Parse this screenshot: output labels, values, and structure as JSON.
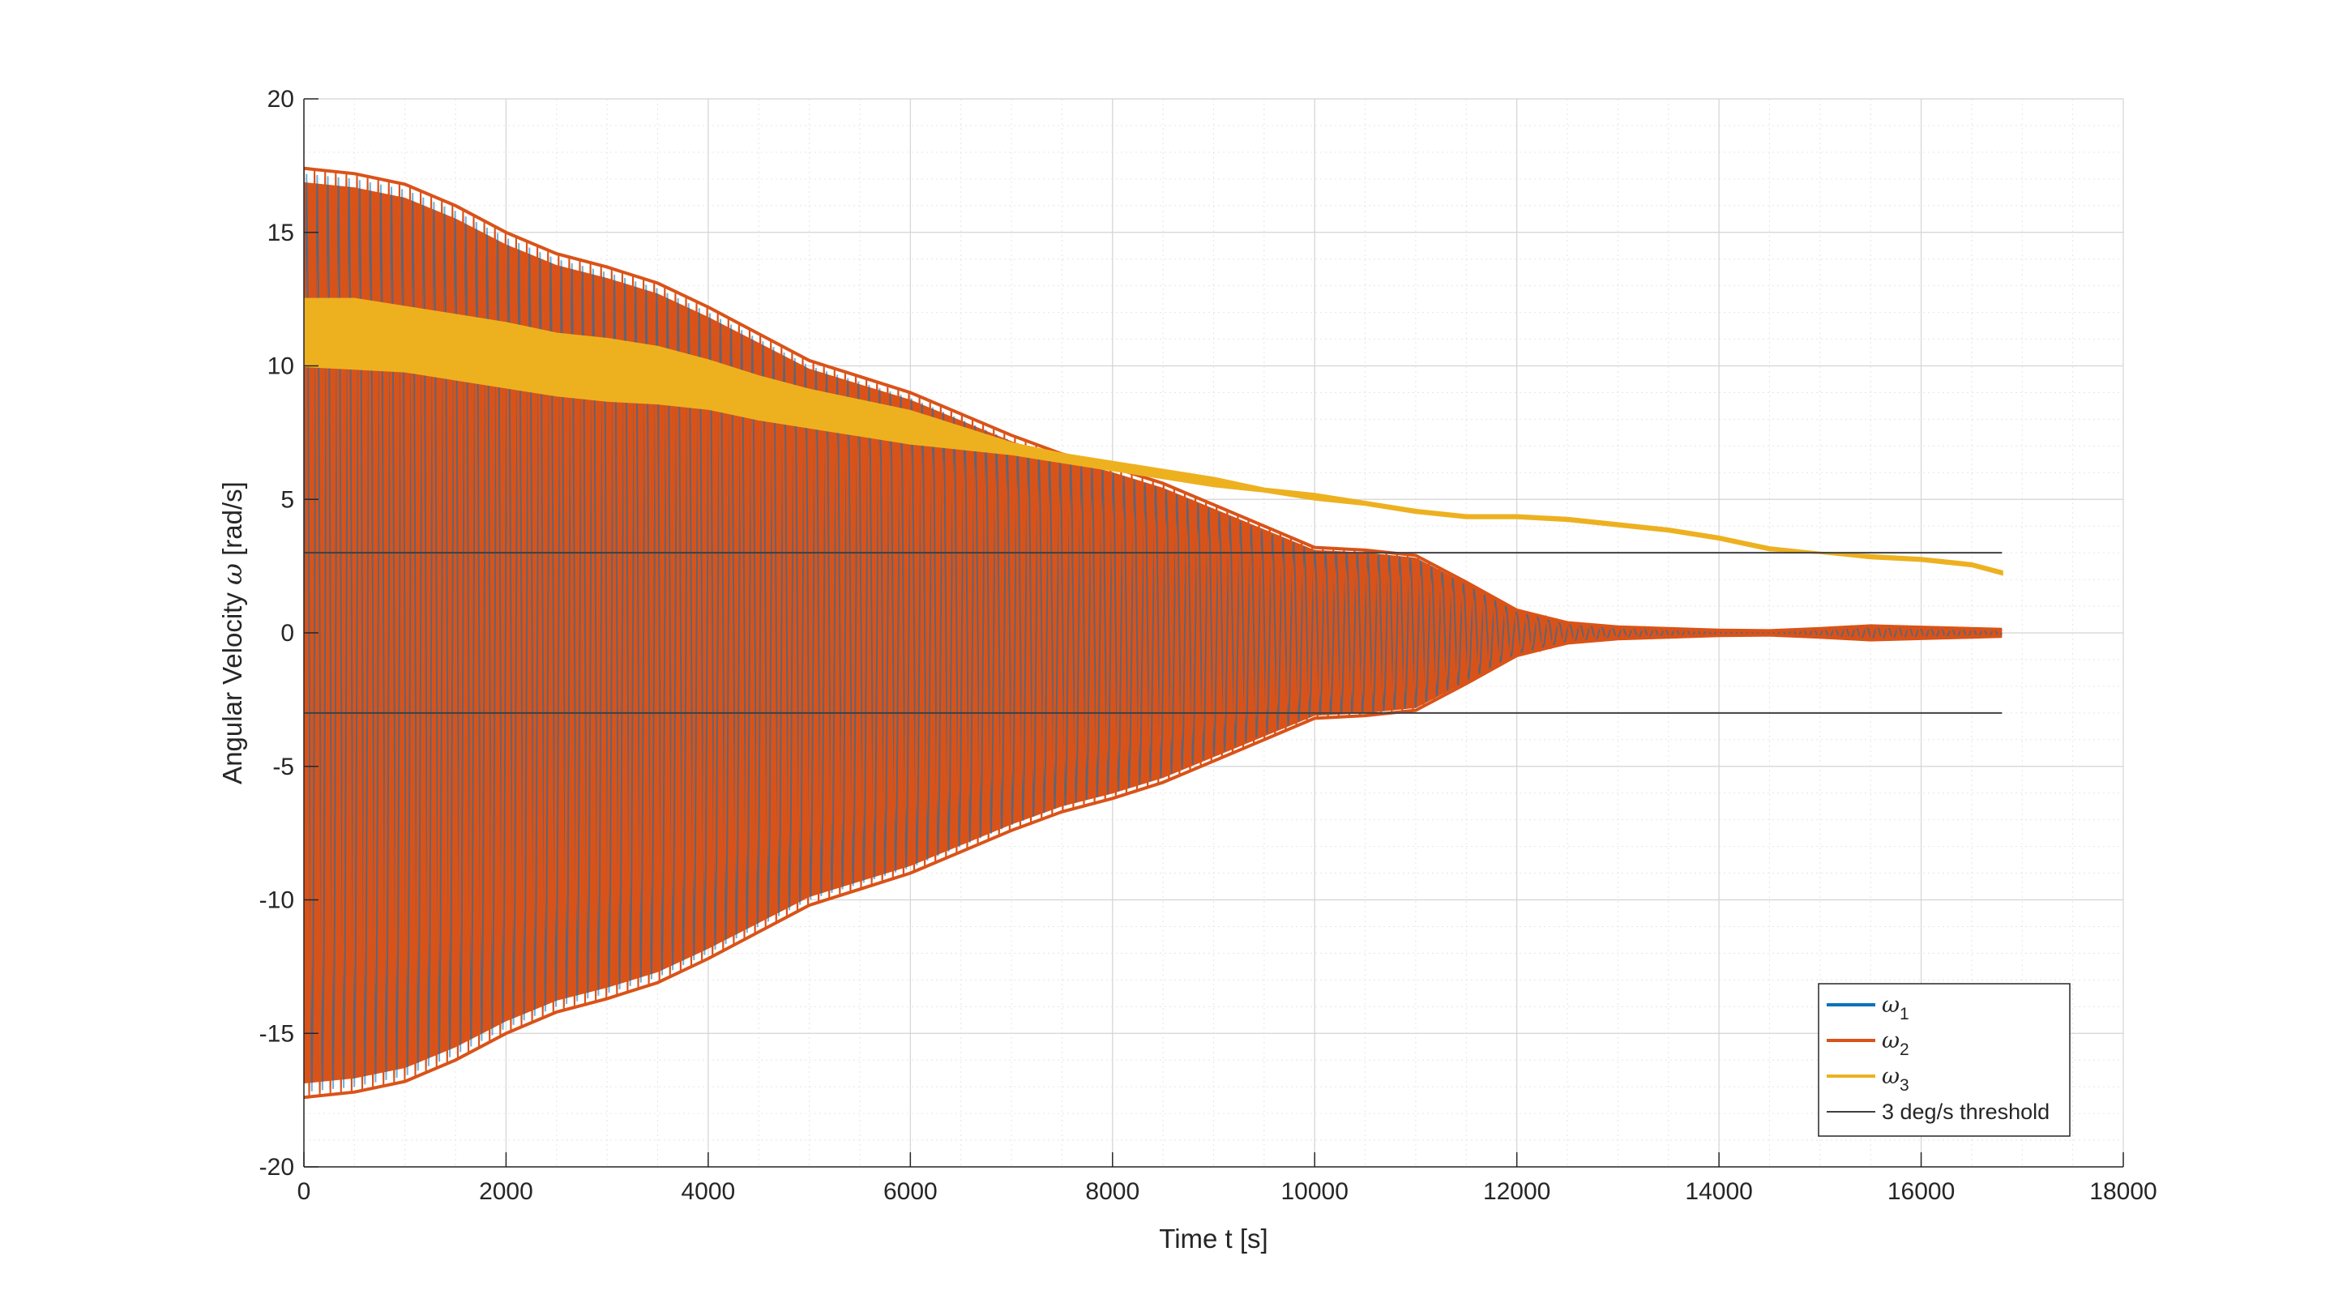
{
  "chart_data": {
    "type": "line",
    "xlabel": "Time t [s]",
    "ylabel_prefix": "Angular Velocity ",
    "ylabel_symbol": "ω",
    "ylabel_suffix": " [rad/s]",
    "xlim": [
      0,
      18000
    ],
    "ylim": [
      -20,
      20
    ],
    "xticks": [
      0,
      2000,
      4000,
      6000,
      8000,
      10000,
      12000,
      14000,
      16000,
      18000
    ],
    "yticks": [
      -20,
      -15,
      -10,
      -5,
      0,
      5,
      10,
      15,
      20
    ],
    "grid": true,
    "minor_grid": true,
    "legend_position": "bottom-right",
    "t_end": 16800,
    "colors": {
      "omega1": "#0072BD",
      "omega2": "#D95319",
      "omega3": "#EDB120",
      "threshold": "#404040"
    },
    "series": [
      {
        "name": "ω",
        "subscript": "1",
        "kind": "oscillation",
        "envelope": {
          "t": [
            0,
            500,
            1000,
            1500,
            2000,
            2500,
            3000,
            3500,
            4000,
            4500,
            5000,
            5500,
            6000,
            6500,
            7000,
            7500,
            8000,
            8500,
            9000,
            9500,
            10000,
            10500,
            11000,
            11500,
            12000,
            12500,
            13000,
            13500,
            14000,
            14500,
            15000,
            15500,
            16000,
            16500,
            16800
          ],
          "amplitude": [
            17.2,
            17.0,
            16.6,
            15.8,
            14.8,
            14.0,
            13.5,
            12.9,
            12.0,
            11.0,
            10.0,
            9.4,
            8.8,
            8.0,
            7.2,
            6.5,
            6.0,
            5.4,
            4.6,
            3.8,
            3.1,
            3.0,
            2.8,
            1.8,
            0.8,
            0.35,
            0.2,
            0.15,
            0.1,
            0.08,
            0.15,
            0.25,
            0.2,
            0.15,
            0.12
          ]
        }
      },
      {
        "name": "ω",
        "subscript": "2",
        "kind": "oscillation",
        "envelope": {
          "t": [
            0,
            500,
            1000,
            1500,
            2000,
            2500,
            3000,
            3500,
            4000,
            4500,
            5000,
            5500,
            6000,
            6500,
            7000,
            7500,
            8000,
            8500,
            9000,
            9500,
            10000,
            10500,
            11000,
            11500,
            12000,
            12500,
            13000,
            13500,
            14000,
            14500,
            15000,
            15500,
            16000,
            16500,
            16800
          ],
          "amplitude": [
            17.4,
            17.2,
            16.8,
            16.0,
            15.0,
            14.2,
            13.7,
            13.1,
            12.2,
            11.2,
            10.2,
            9.6,
            9.0,
            8.2,
            7.4,
            6.7,
            6.2,
            5.6,
            4.8,
            4.0,
            3.2,
            3.1,
            2.9,
            1.9,
            0.85,
            0.38,
            0.22,
            0.16,
            0.1,
            0.08,
            0.16,
            0.26,
            0.21,
            0.16,
            0.13
          ]
        }
      },
      {
        "name": "ω",
        "subscript": "3",
        "kind": "band",
        "t": [
          0,
          500,
          1000,
          1500,
          2000,
          2500,
          3000,
          3500,
          4000,
          4500,
          5000,
          5500,
          6000,
          6500,
          7000,
          7500,
          8000,
          8500,
          9000,
          9500,
          10000,
          10500,
          11000,
          11500,
          12000,
          12500,
          13000,
          13500,
          14000,
          14500,
          15000,
          15500,
          16000,
          16500,
          16800
        ],
        "upper": [
          12.5,
          12.5,
          12.2,
          11.9,
          11.6,
          11.2,
          11.0,
          10.7,
          10.2,
          9.6,
          9.1,
          8.7,
          8.3,
          7.7,
          7.1,
          6.7,
          6.4,
          6.1,
          5.8,
          5.4,
          5.2,
          4.9,
          4.6,
          4.4,
          4.4,
          4.3,
          4.1,
          3.9,
          3.6,
          3.2,
          3.0,
          2.9,
          2.8,
          2.6,
          2.3
        ],
        "lower": [
          10.0,
          9.9,
          9.8,
          9.5,
          9.2,
          8.9,
          8.7,
          8.6,
          8.4,
          8.0,
          7.7,
          7.4,
          7.1,
          6.9,
          6.7,
          6.4,
          6.1,
          5.8,
          5.5,
          5.3,
          5.0,
          4.8,
          4.5,
          4.3,
          4.3,
          4.2,
          4.0,
          3.8,
          3.5,
          3.1,
          3.0,
          2.8,
          2.7,
          2.5,
          2.2
        ]
      },
      {
        "name": "3 deg/s threshold",
        "kind": "threshold",
        "values": [
          3,
          -3
        ],
        "t_range": [
          0,
          16800
        ]
      }
    ]
  }
}
